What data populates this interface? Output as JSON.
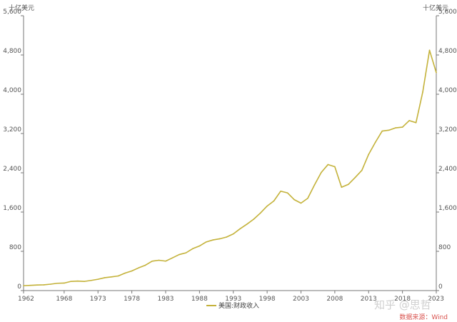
{
  "chart_data": {
    "type": "line",
    "title": "",
    "units": {
      "left": "十亿美元",
      "right": "十亿美元"
    },
    "xlim": [
      1962,
      2023
    ],
    "ylim": [
      0,
      5600
    ],
    "y_ticks": [
      0,
      800,
      1600,
      2400,
      3200,
      4000,
      4800,
      5600
    ],
    "y_tick_labels": [
      "0",
      "800",
      "1,600",
      "2,400",
      "3,200",
      "4,000",
      "4,800",
      "5,600"
    ],
    "x_ticks": [
      1962,
      1968,
      1973,
      1978,
      1983,
      1988,
      1993,
      1998,
      2003,
      2008,
      2013,
      2018,
      2023
    ],
    "x_tick_labels": [
      "1962",
      "1968",
      "1973",
      "1978",
      "1983",
      "1988",
      "1993",
      "1998",
      "2003",
      "2008",
      "2013",
      "2018",
      "2023"
    ],
    "grid": false,
    "legend_position": "bottom-center",
    "series": [
      {
        "name": "美国:财政收入",
        "color": "#c4b23a",
        "x": [
          1962,
          1963,
          1964,
          1965,
          1966,
          1967,
          1968,
          1969,
          1970,
          1971,
          1972,
          1973,
          1974,
          1975,
          1976,
          1977,
          1978,
          1979,
          1980,
          1981,
          1982,
          1983,
          1984,
          1985,
          1986,
          1987,
          1988,
          1989,
          1990,
          1991,
          1992,
          1993,
          1994,
          1995,
          1996,
          1997,
          1998,
          1999,
          2000,
          2001,
          2002,
          2003,
          2004,
          2005,
          2006,
          2007,
          2008,
          2009,
          2010,
          2011,
          2012,
          2013,
          2014,
          2015,
          2016,
          2017,
          2018,
          2019,
          2020,
          2021,
          2022,
          2023
        ],
        "values": [
          100,
          107,
          113,
          117,
          131,
          149,
          153,
          187,
          193,
          187,
          207,
          231,
          263,
          279,
          298,
          356,
          400,
          463,
          517,
          599,
          618,
          600,
          666,
          734,
          769,
          854,
          909,
          991,
          1032,
          1055,
          1091,
          1154,
          1259,
          1352,
          1453,
          1579,
          1722,
          1827,
          2025,
          1991,
          1853,
          1782,
          1880,
          2153,
          2407,
          2568,
          2524,
          2105,
          2163,
          2303,
          2450,
          2775,
          3022,
          3250,
          3268,
          3316,
          3330,
          3463,
          3421,
          4047,
          4897,
          4440
        ]
      }
    ]
  },
  "watermark": {
    "text": "知乎 @思哲"
  },
  "source": {
    "text": "数据来源：Wind"
  }
}
